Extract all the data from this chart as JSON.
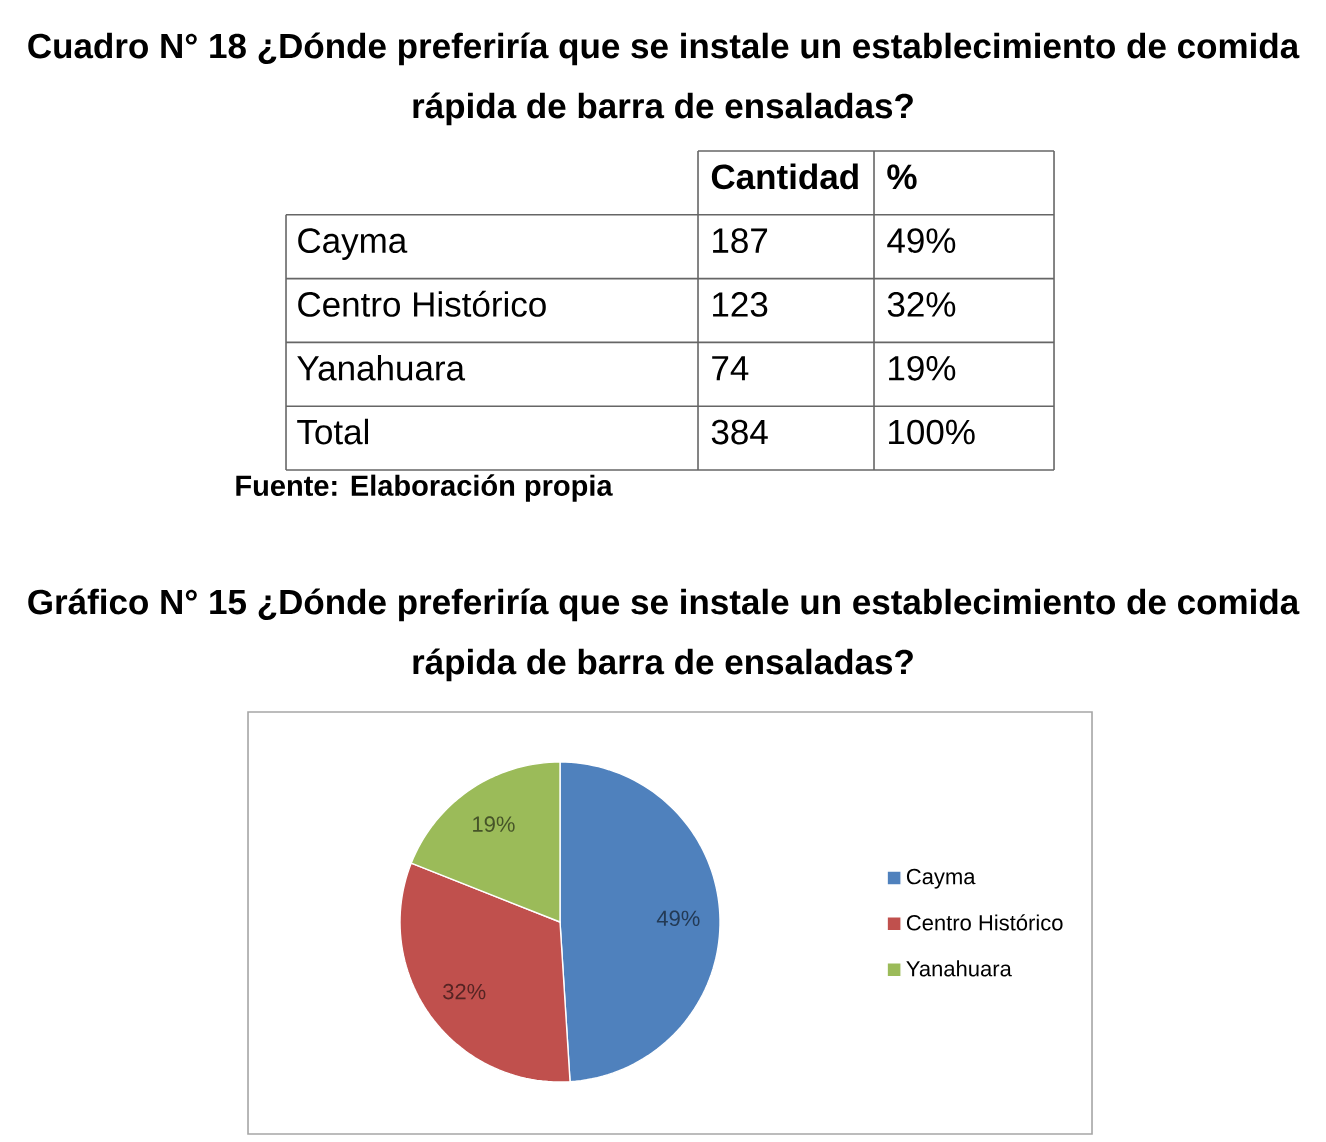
{
  "chart_data": [
    {
      "type": "other",
      "title": "Cuadro N° 18 ¿Dónde preferiría que se instale  un establecimiento de comida rápida de barra de ensaladas?",
      "categories": [
        "Cayma",
        "Centro Histórico",
        "Yanahuara",
        "Total"
      ],
      "series": [
        {
          "name": "Cantidad",
          "values": [
            187,
            123,
            74,
            384
          ]
        },
        {
          "name": "%",
          "values": [
            49,
            32,
            19,
            100
          ],
          "value_labels": [
            "49%",
            "32%",
            "19%",
            "100%"
          ]
        }
      ],
      "data_labels": true,
      "annotations": [
        "Fuente: Elaboración propia"
      ]
    },
    {
      "type": "pie",
      "title": "Gráfico N° 15 ¿Dónde preferiría que se instale  un establecimiento de comida rápida de barra de ensaladas?",
      "categories": [
        "Cayma",
        "Centro Histórico",
        "Yanahuara"
      ],
      "values": [
        49,
        32,
        19
      ],
      "colors": [
        "#4f81bd",
        "#c0504d",
        "#9bbb59"
      ],
      "value_labels": [
        "49%",
        "32%",
        "19%"
      ],
      "legend": "right"
    }
  ]
}
